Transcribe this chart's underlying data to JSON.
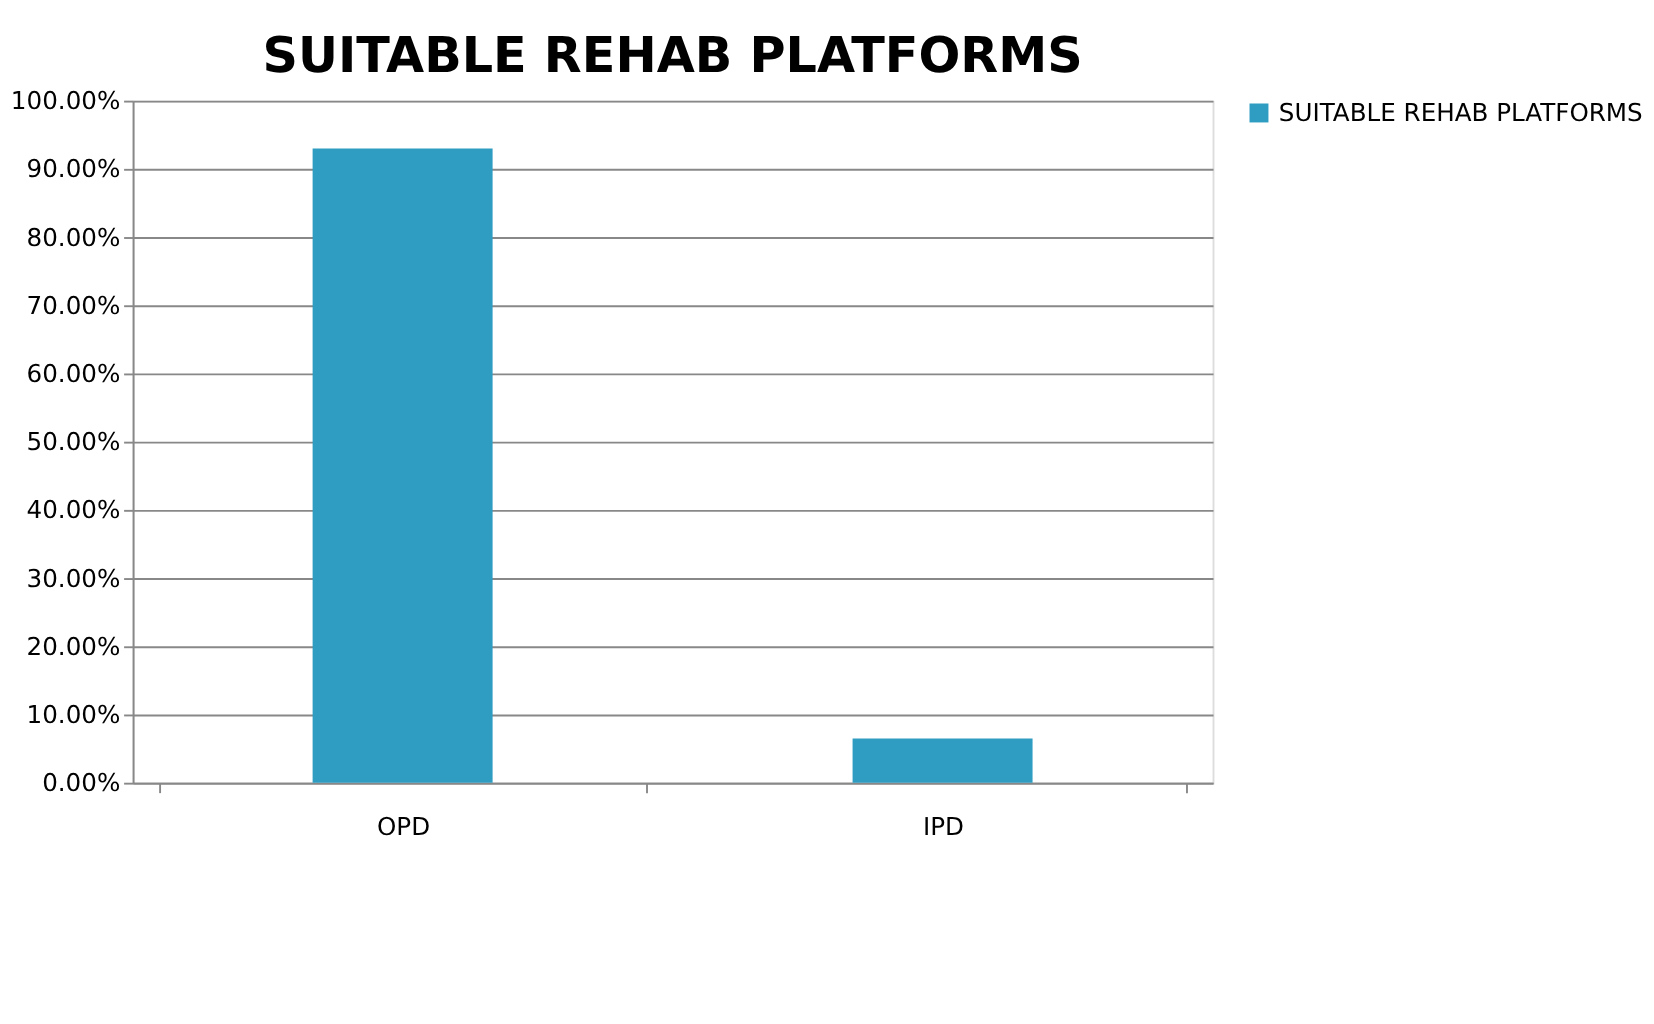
{
  "chart_data": {
    "type": "bar",
    "title": "SUITABLE REHAB PLATFORMS",
    "categories": [
      "OPD",
      "IPD"
    ],
    "series": [
      {
        "name": "SUITABLE REHAB PLATFORMS",
        "color": "#2f9dc2",
        "values": [
          93,
          6.5
        ]
      }
    ],
    "ylim": [
      0,
      100
    ],
    "yticks": [
      {
        "value": 0,
        "label": "0.00%"
      },
      {
        "value": 10,
        "label": "10.00%"
      },
      {
        "value": 20,
        "label": "20.00%"
      },
      {
        "value": 30,
        "label": "30.00%"
      },
      {
        "value": 40,
        "label": "40.00%"
      },
      {
        "value": 50,
        "label": "50.00%"
      },
      {
        "value": 60,
        "label": "60.00%"
      },
      {
        "value": 70,
        "label": "70.00%"
      },
      {
        "value": 80,
        "label": "80.00%"
      },
      {
        "value": 90,
        "label": "90.00%"
      },
      {
        "value": 100,
        "label": "100.00%"
      }
    ],
    "grid": "y",
    "legend": "right"
  }
}
